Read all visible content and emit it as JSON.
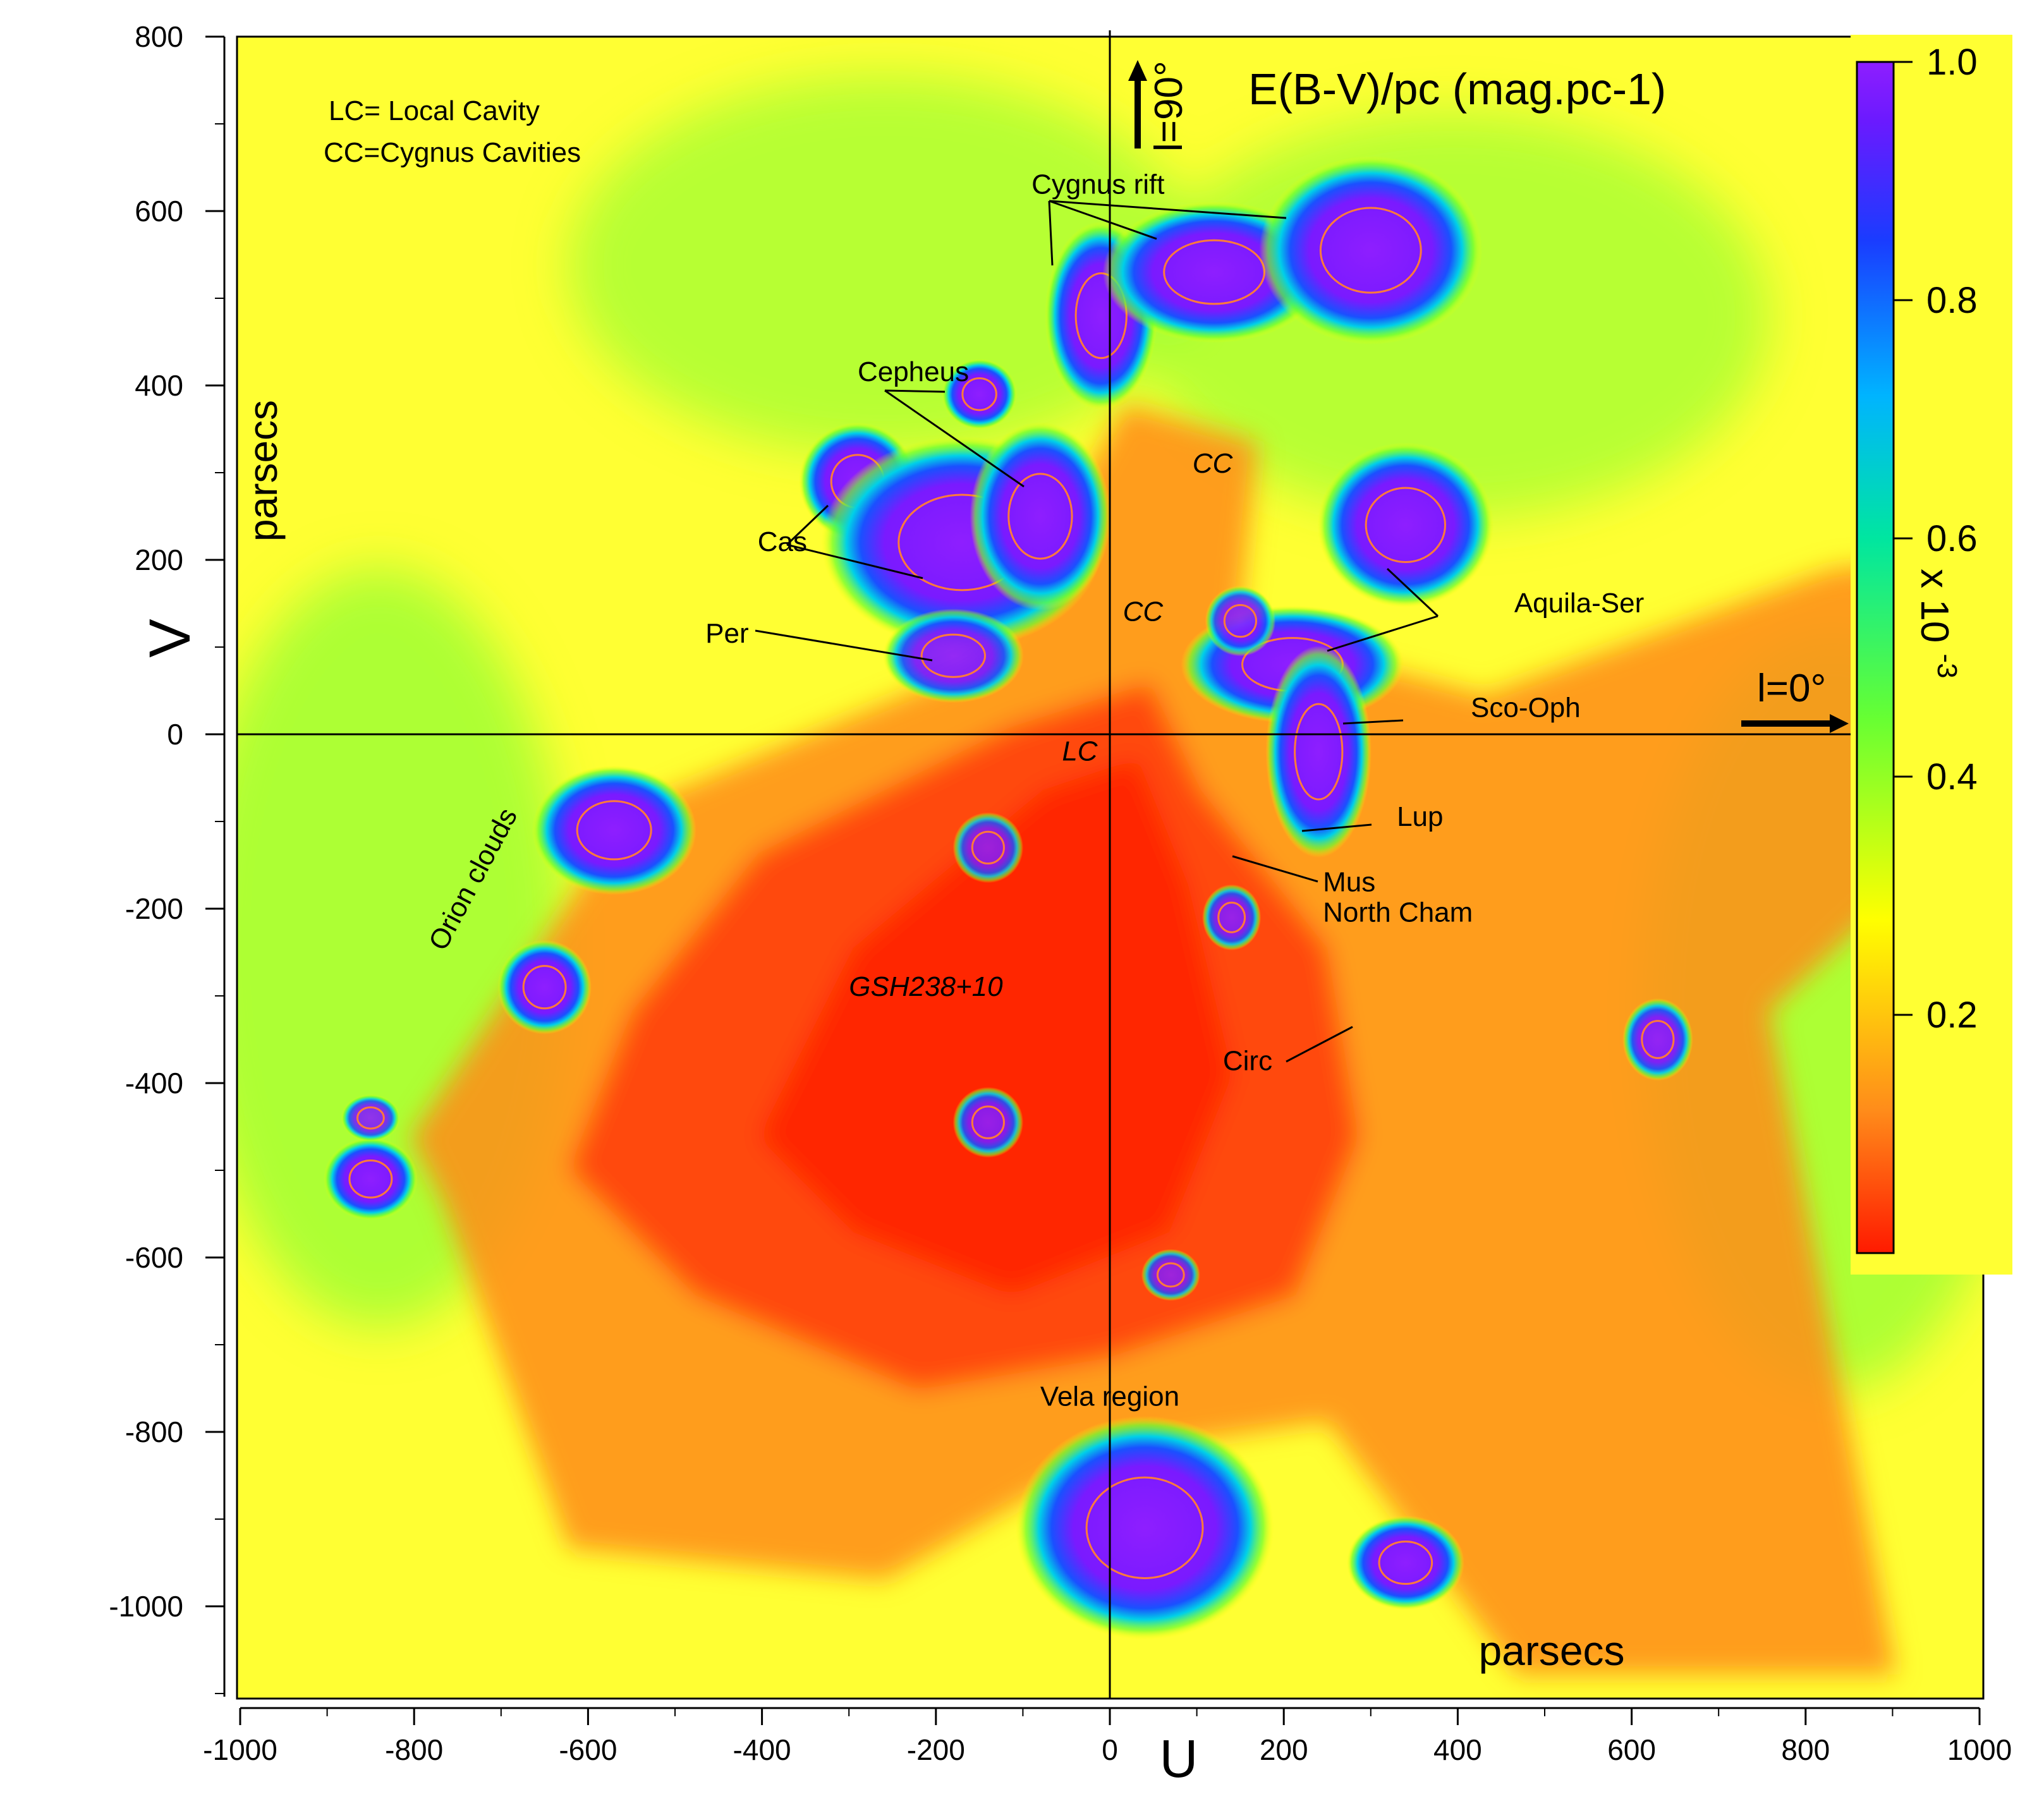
{
  "chart_data": {
    "type": "heatmap",
    "title": "E(B-V)/pc  (mag.pc-1)",
    "xlabel": "U",
    "ylabel": "V",
    "x_units_label": "parsecs",
    "y_units_label": "parsecs",
    "xlim": [
      -1000,
      1000
    ],
    "ylim": [
      -1100,
      800
    ],
    "x_ticks": [
      "-1000",
      "-800",
      "-600",
      "-400",
      "-200",
      "0",
      "200",
      "400",
      "600",
      "800",
      "1000"
    ],
    "y_ticks": [
      "800",
      "600",
      "400",
      "200",
      "0",
      "-200",
      "-400",
      "-600",
      "-800",
      "-1000"
    ],
    "colorbar": {
      "range": [
        0,
        1.0
      ],
      "ticks": [
        "1.0",
        "0.8",
        "0.6",
        "0.4",
        "0.2"
      ],
      "multiplier_label": "x 10",
      "multiplier_exponent": "-3",
      "colors": [
        "#ff1a00",
        "#ff8c1a",
        "#ffff00",
        "#66ff33",
        "#00e6a0",
        "#00b4ff",
        "#1a3cff",
        "#6a1aff",
        "#8e1eff"
      ]
    },
    "legend": [
      "LC= Local Cavity",
      "CC=Cygnus Cavities"
    ],
    "directions": [
      {
        "label": "l=0°",
        "direction": "U+"
      },
      {
        "label": "l=90°",
        "direction": "V+"
      }
    ],
    "features": [
      {
        "label": "Cygnus rift",
        "u": -90,
        "v": 620,
        "style": "normal"
      },
      {
        "label": "Cepheus",
        "u": -290,
        "v": 405,
        "style": "normal"
      },
      {
        "label": "Cas",
        "u": -405,
        "v": 210,
        "style": "normal"
      },
      {
        "label": "Per",
        "u": -465,
        "v": 105,
        "style": "normal"
      },
      {
        "label": "Aquila-Ser",
        "u": 465,
        "v": 140,
        "style": "normal"
      },
      {
        "label": "Sco-Oph",
        "u": 415,
        "v": 20,
        "style": "normal"
      },
      {
        "label": "Lup",
        "u": 330,
        "v": -105,
        "style": "normal"
      },
      {
        "label": "Mus",
        "u": 245,
        "v": -180,
        "style": "normal"
      },
      {
        "label": "North Cham",
        "u": 245,
        "v": -215,
        "style": "normal"
      },
      {
        "label": "Circ",
        "u": 130,
        "v": -385,
        "style": "normal"
      },
      {
        "label": "Orion clouds",
        "u": -765,
        "v": -250,
        "style": "normal",
        "rotate": -62
      },
      {
        "label": "GSH238+10",
        "u": -300,
        "v": -300,
        "style": "italic"
      },
      {
        "label": "Vela region",
        "u": -80,
        "v": -770,
        "style": "normal"
      },
      {
        "label": "CC",
        "u": 95,
        "v": 300,
        "style": "italic"
      },
      {
        "label": "CC",
        "u": 15,
        "v": 130,
        "style": "italic"
      },
      {
        "label": "LC",
        "u": -55,
        "v": -30,
        "style": "italic"
      }
    ],
    "clouds": [
      {
        "u": -10,
        "v": 480,
        "ru": 48,
        "rv": 80,
        "value": 1.0
      },
      {
        "u": 120,
        "v": 530,
        "ru": 95,
        "rv": 60,
        "value": 1.0
      },
      {
        "u": 300,
        "v": 555,
        "ru": 95,
        "rv": 80,
        "value": 1.0
      },
      {
        "u": -150,
        "v": 390,
        "ru": 32,
        "rv": 30,
        "value": 1.0
      },
      {
        "u": -290,
        "v": 290,
        "ru": 50,
        "rv": 50,
        "value": 1.0
      },
      {
        "u": -170,
        "v": 220,
        "ru": 120,
        "rv": 90,
        "value": 1.0
      },
      {
        "u": -80,
        "v": 250,
        "ru": 60,
        "rv": 80,
        "value": 1.0
      },
      {
        "u": -180,
        "v": 90,
        "ru": 60,
        "rv": 40,
        "value": 0.95
      },
      {
        "u": 340,
        "v": 240,
        "ru": 75,
        "rv": 70,
        "value": 1.0
      },
      {
        "u": 210,
        "v": 80,
        "ru": 95,
        "rv": 50,
        "value": 1.0
      },
      {
        "u": 240,
        "v": -20,
        "ru": 45,
        "rv": 90,
        "value": 1.0
      },
      {
        "u": 150,
        "v": 130,
        "ru": 30,
        "rv": 30,
        "value": 0.9
      },
      {
        "u": 140,
        "v": -210,
        "ru": 25,
        "rv": 28,
        "value": 0.9
      },
      {
        "u": -570,
        "v": -110,
        "ru": 70,
        "rv": 55,
        "value": 1.0
      },
      {
        "u": -650,
        "v": -290,
        "ru": 40,
        "rv": 40,
        "value": 1.0
      },
      {
        "u": -850,
        "v": -510,
        "ru": 40,
        "rv": 35,
        "value": 1.0
      },
      {
        "u": -850,
        "v": -440,
        "ru": 25,
        "rv": 20,
        "value": 0.9
      },
      {
        "u": 40,
        "v": -910,
        "ru": 110,
        "rv": 95,
        "value": 1.0
      },
      {
        "u": 340,
        "v": -950,
        "ru": 50,
        "rv": 40,
        "value": 1.0
      },
      {
        "u": 630,
        "v": -350,
        "ru": 30,
        "rv": 35,
        "value": 0.95
      },
      {
        "u": -140,
        "v": -445,
        "ru": 30,
        "rv": 30,
        "value": 0.9
      },
      {
        "u": -140,
        "v": -130,
        "ru": 30,
        "rv": 30,
        "value": 0.85
      },
      {
        "u": 70,
        "v": -620,
        "ru": 25,
        "rv": 22,
        "value": 0.85
      }
    ]
  }
}
